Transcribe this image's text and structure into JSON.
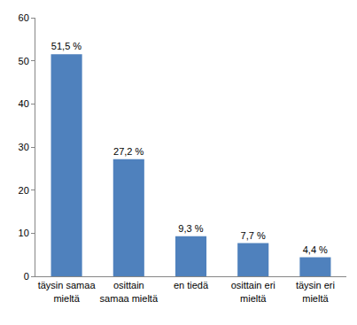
{
  "chart_data": {
    "type": "bar",
    "categories": [
      "täysin samaa mieltä",
      "osittain samaa mieltä",
      "en tiedä",
      "osittain eri mieltä",
      "täysin eri mieltä"
    ],
    "values": [
      51.5,
      27.2,
      9.3,
      7.7,
      4.4
    ],
    "value_labels": [
      "51,5 %",
      "27,2 %",
      "9,3 %",
      "7,7 %",
      "4,4 %"
    ],
    "color": "#4f81bd",
    "ylim": [
      0,
      60
    ],
    "yticks": [
      0,
      10,
      20,
      30,
      40,
      50,
      60
    ],
    "grid": false,
    "data_labels": true
  }
}
